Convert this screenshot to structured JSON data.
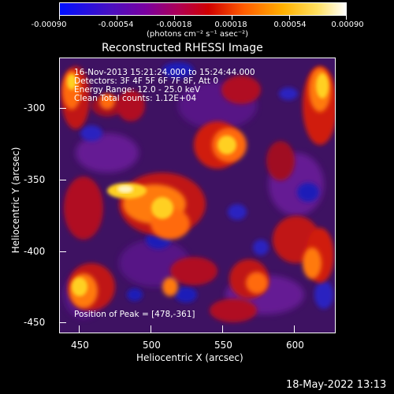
{
  "colorbar": {
    "tick_labels": [
      "-0.00090",
      "-0.00054",
      "-0.00018",
      "0.00018",
      "0.00054",
      "0.00090"
    ],
    "units_label": "(photons cm⁻² s⁻¹ asec⁻²)",
    "colors": {
      "low": "#0010ff",
      "mid": "#7a00a0",
      "mid2": "#d00000",
      "high": "#ffcc00",
      "top": "#ffffff"
    }
  },
  "image": {
    "title": "Reconstructed RHESSI Image",
    "info": {
      "time_range": "16-Nov-2013 15:21:24.000 to 15:24:44.000",
      "detectors": "Detectors: 3F 4F 5F 6F 7F 8F, Att 0",
      "energy_range": "Energy Range: 12.0 - 25.0 keV",
      "clean": "Clean    Total counts: 1.12E+04"
    },
    "peak_label": "Position of Peak = [478,-361]",
    "x_axis": {
      "label": "Heliocentric X (arcsec)",
      "tick_labels": [
        "450",
        "500",
        "550",
        "600"
      ]
    },
    "y_axis": {
      "label": "Heliocentric Y (arcsec)",
      "tick_labels": [
        "-300",
        "-350",
        "-400",
        "-450"
      ]
    },
    "colormap": {
      "background": "#44146a",
      "blue": "#1f1eb8",
      "purple": "#6a1a9a",
      "red": "#d01a10",
      "orange": "#ff7a10",
      "yellow": "#ffd020"
    }
  },
  "footer": {
    "timestamp": "18-May-2022 13:13"
  }
}
